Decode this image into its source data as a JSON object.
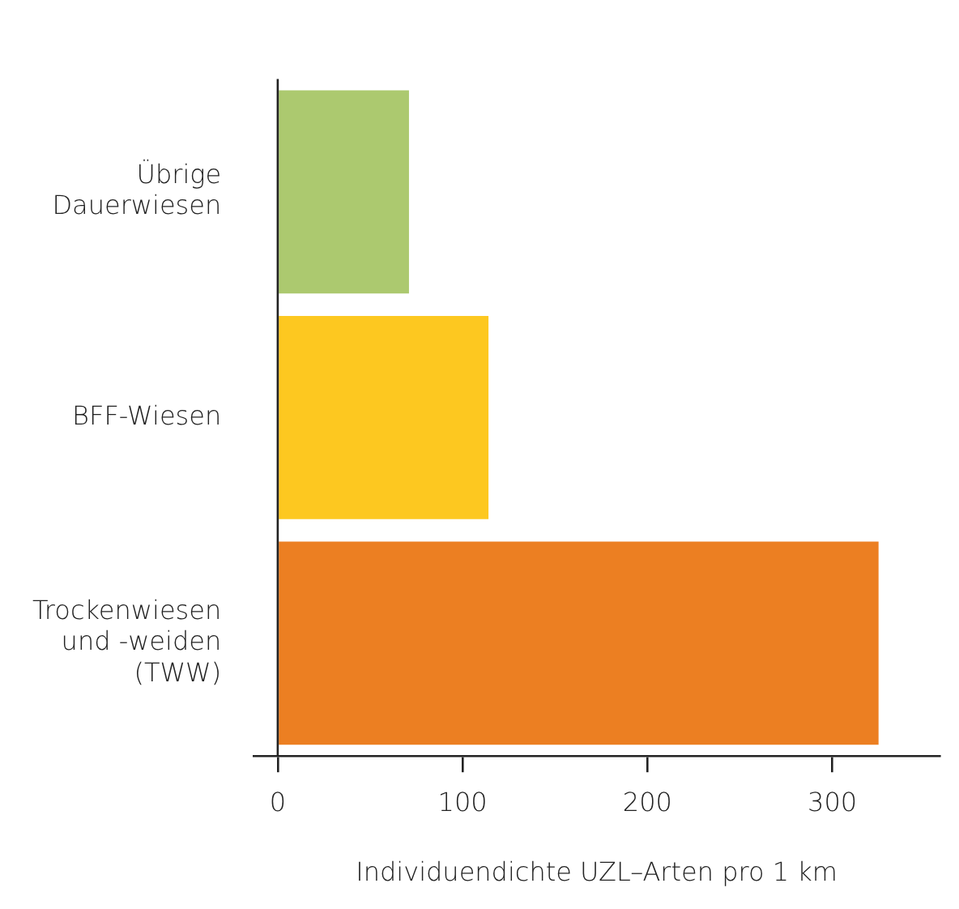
{
  "chart_data": {
    "type": "bar",
    "orientation": "horizontal",
    "categories": [
      "Übrige\nDauerwiesen",
      "BFF-Wiesen",
      "Trockenwiesen\nund -weiden\n(TWW)"
    ],
    "values": [
      71,
      114,
      325
    ],
    "colors": [
      "#acc96f",
      "#fdc820",
      "#ec7f22"
    ],
    "xlim": [
      -13,
      358
    ],
    "xticks": [
      0,
      100,
      200,
      300
    ],
    "xlabel": "Individuendichte UZL–Arten pro 1 km",
    "grid": false,
    "legend": false
  }
}
